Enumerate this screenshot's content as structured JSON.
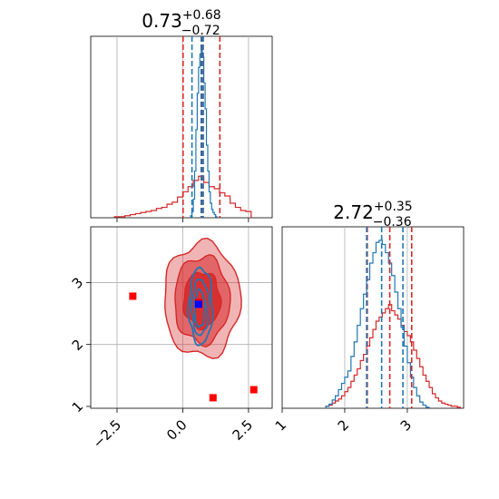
{
  "chart_data": {
    "type": "corner",
    "grid": true,
    "colors": {
      "red": "#d62728",
      "blue": "#1f77b4",
      "marker_blue": "#0000ff",
      "marker_red": "#ff0000"
    },
    "panels": [
      {
        "id": "hist_x",
        "type": "step-histogram",
        "title": {
          "value": "0.73",
          "sup": "+0.68",
          "sub": "−0.72"
        },
        "xlim": [
          -3.5,
          3.4
        ],
        "xgrid": [
          -2.5,
          0.0,
          2.5
        ],
        "quantiles": {
          "red": [
            0.01,
            0.73,
            1.41
          ],
          "blue": [
            0.35,
            0.7,
            0.78
          ]
        },
        "series": [
          {
            "name": "",
            "color": "#d62728",
            "bins_x": [
              -2.6,
              -2.4,
              -2.2,
              -2.0,
              -1.8,
              -1.6,
              -1.4,
              -1.2,
              -1.0,
              -0.8,
              -0.6,
              -0.4,
              -0.2,
              0.0,
              0.2,
              0.4,
              0.6,
              0.8,
              1.0,
              1.2,
              1.4,
              1.6,
              1.8,
              2.0,
              2.2,
              2.4,
              2.6
            ],
            "counts": [
              1,
              1,
              2,
              3,
              4,
              5,
              6,
              7,
              9,
              10,
              13,
              15,
              20,
              25,
              30,
              36,
              40,
              34,
              30,
              28,
              24,
              21,
              14,
              10,
              7,
              6
            ]
          },
          {
            "name": "",
            "color": "#1f77b4",
            "bins_x": [
              0.3,
              0.35,
              0.4,
              0.45,
              0.5,
              0.55,
              0.6,
              0.65,
              0.7,
              0.75,
              0.8,
              0.85,
              0.9,
              0.95,
              1.0,
              1.05,
              1.1,
              1.15,
              1.2,
              1.25,
              1.3
            ],
            "counts": [
              2,
              6,
              18,
              45,
              85,
              120,
              145,
              158,
              162,
              155,
              130,
              105,
              70,
              45,
              25,
              14,
              8,
              5,
              3,
              1
            ]
          }
        ],
        "ymax": 175
      },
      {
        "id": "hist_y",
        "type": "step-histogram",
        "title": {
          "value": "2.72",
          "sup": "+0.35",
          "sub": "−0.36"
        },
        "xlim": [
          1.0,
          3.9
        ],
        "xticks": [
          1,
          2,
          3
        ],
        "xgrid": [
          2,
          3
        ],
        "quantiles": {
          "red": [
            2.36,
            2.72,
            3.07
          ],
          "blue": [
            2.35,
            2.59,
            2.93
          ]
        },
        "series": [
          {
            "name": "",
            "color": "#d62728",
            "bins_x": [
              1.7,
              1.75,
              1.8,
              1.85,
              1.9,
              1.95,
              2.0,
              2.05,
              2.1,
              2.15,
              2.2,
              2.25,
              2.3,
              2.35,
              2.4,
              2.45,
              2.5,
              2.55,
              2.6,
              2.65,
              2.7,
              2.75,
              2.8,
              2.85,
              2.9,
              2.95,
              3.0,
              3.05,
              3.1,
              3.15,
              3.2,
              3.25,
              3.3,
              3.35,
              3.4,
              3.45,
              3.5,
              3.55,
              3.6,
              3.65,
              3.7,
              3.75,
              3.8,
              3.85
            ],
            "counts": [
              2,
              3,
              5,
              7,
              9,
              12,
              16,
              20,
              26,
              32,
              38,
              46,
              52,
              60,
              68,
              76,
              84,
              88,
              92,
              96,
              100,
              94,
              90,
              86,
              80,
              74,
              70,
              64,
              56,
              48,
              40,
              32,
              26,
              20,
              14,
              10,
              7,
              5,
              4,
              3,
              2,
              2,
              1
            ]
          },
          {
            "name": "",
            "color": "#1f77b4",
            "bins_x": [
              1.7,
              1.75,
              1.8,
              1.85,
              1.9,
              1.95,
              2.0,
              2.05,
              2.1,
              2.15,
              2.2,
              2.25,
              2.3,
              2.35,
              2.4,
              2.45,
              2.5,
              2.55,
              2.6,
              2.65,
              2.7,
              2.75,
              2.8,
              2.85,
              2.9,
              2.95,
              3.0,
              3.05,
              3.1,
              3.15,
              3.2,
              3.25,
              3.3,
              3.35
            ],
            "counts": [
              2,
              4,
              8,
              12,
              18,
              24,
              30,
              36,
              50,
              64,
              80,
              96,
              110,
              124,
              140,
              150,
              160,
              162,
              158,
              150,
              140,
              128,
              112,
              96,
              78,
              60,
              44,
              30,
              20,
              12,
              6,
              3,
              1
            ]
          }
        ],
        "ymax": 175
      },
      {
        "id": "scatter_xy",
        "type": "contour",
        "xlim": [
          -3.5,
          3.4
        ],
        "ylim": [
          0.97,
          3.9
        ],
        "xticks": [
          -2.5,
          0.0,
          2.5
        ],
        "yticks": [
          1,
          2,
          3
        ],
        "xgrid": [
          -2.5,
          0.0,
          2.5
        ],
        "ygrid": [
          2,
          3
        ],
        "red_contours": [
          {
            "cx": 0.73,
            "cy": 2.72,
            "rx": 1.45,
            "ry": 0.92,
            "opacity": 0.35
          },
          {
            "cx": 0.73,
            "cy": 2.72,
            "rx": 1.05,
            "ry": 0.7,
            "opacity": 0.55
          },
          {
            "cx": 0.73,
            "cy": 2.72,
            "rx": 0.7,
            "ry": 0.45,
            "opacity": 0.85
          }
        ],
        "blue_contours": [
          {
            "cx": 0.68,
            "cy": 2.62,
            "rx": 0.45,
            "ry": 0.62
          },
          {
            "cx": 0.66,
            "cy": 2.6,
            "rx": 0.32,
            "ry": 0.45
          },
          {
            "cx": 0.64,
            "cy": 2.58,
            "rx": 0.2,
            "ry": 0.3
          }
        ],
        "red_markers": [
          {
            "x": -1.9,
            "y": 2.78
          },
          {
            "x": 1.15,
            "y": 1.14
          },
          {
            "x": 2.7,
            "y": 1.27
          },
          {
            "x": 0.6,
            "y": 2.68
          }
        ],
        "blue_markers": [
          {
            "x": 0.6,
            "y": 2.65
          }
        ]
      }
    ]
  }
}
